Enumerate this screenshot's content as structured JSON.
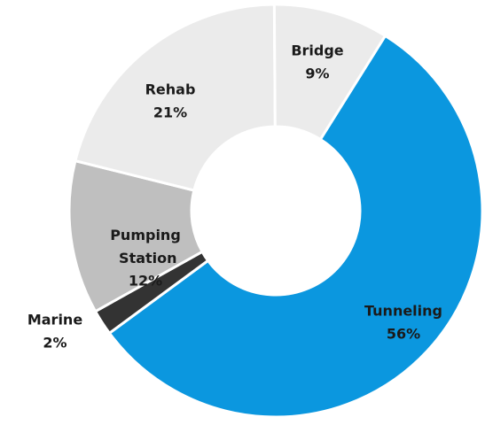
{
  "chart_data": {
    "type": "donut",
    "categories": [
      "Tunneling",
      "Marine",
      "Pumping Station",
      "Rehab",
      "Bridge"
    ],
    "values": [
      56,
      2,
      12,
      21,
      9
    ],
    "value_labels": [
      "56%",
      "2%",
      "12%",
      "21%",
      "9%"
    ],
    "colors": [
      "#0b97df",
      "#333333",
      "#bfbfbf",
      "#ebebeb",
      "#ebebeb"
    ]
  }
}
